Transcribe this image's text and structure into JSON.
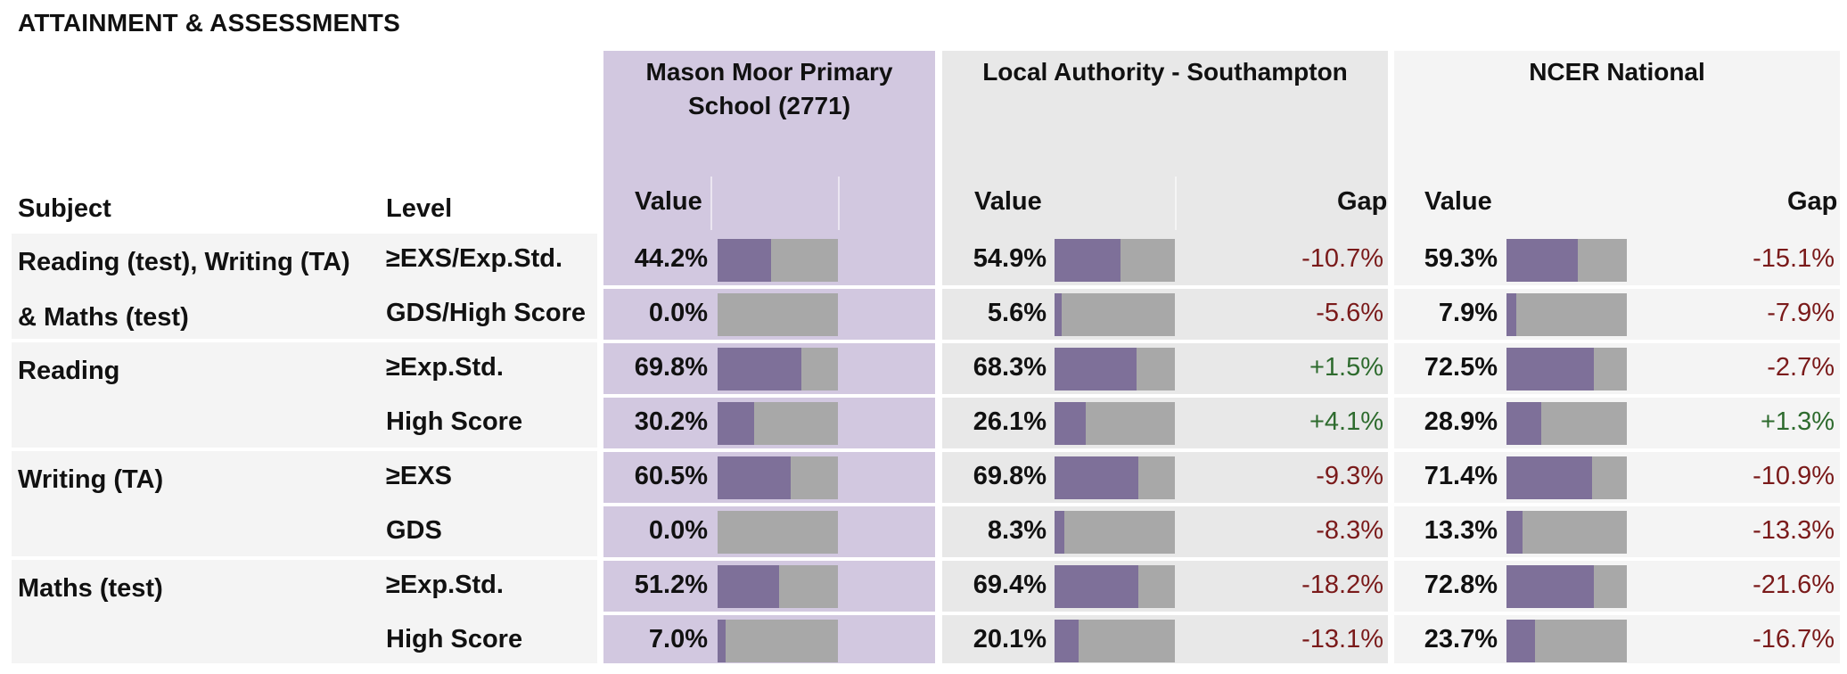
{
  "title": "ATTAINMENT & ASSESSMENTS",
  "groups": {
    "school": "Mason Moor Primary School (2771)",
    "la": "Local Authority - Southampton",
    "national": "NCER National"
  },
  "columns": {
    "subject": "Subject",
    "level": "Level",
    "value": "Value",
    "gap": "Gap"
  },
  "rows": [
    {
      "subject": "Reading (test), Writing (TA)",
      "level": "≥EXS/Exp.Std.",
      "school": "44.2%",
      "school_pct": 44.2,
      "la": "54.9%",
      "la_pct": 54.9,
      "la_gap": "-10.7%",
      "nat": "59.3%",
      "nat_pct": 59.3,
      "nat_gap": "-15.1%"
    },
    {
      "subject": "& Maths (test)",
      "level": "GDS/High Score",
      "school": "0.0%",
      "school_pct": 0.0,
      "la": "5.6%",
      "la_pct": 5.6,
      "la_gap": "-5.6%",
      "nat": "7.9%",
      "nat_pct": 7.9,
      "nat_gap": "-7.9%"
    },
    {
      "subject": "Reading",
      "level": "≥Exp.Std.",
      "school": "69.8%",
      "school_pct": 69.8,
      "la": "68.3%",
      "la_pct": 68.3,
      "la_gap": "+1.5%",
      "nat": "72.5%",
      "nat_pct": 72.5,
      "nat_gap": "-2.7%"
    },
    {
      "subject": "",
      "level": "High Score",
      "school": "30.2%",
      "school_pct": 30.2,
      "la": "26.1%",
      "la_pct": 26.1,
      "la_gap": "+4.1%",
      "nat": "28.9%",
      "nat_pct": 28.9,
      "nat_gap": "+1.3%"
    },
    {
      "subject": "Writing (TA)",
      "level": "≥EXS",
      "school": "60.5%",
      "school_pct": 60.5,
      "la": "69.8%",
      "la_pct": 69.8,
      "la_gap": "-9.3%",
      "nat": "71.4%",
      "nat_pct": 71.4,
      "nat_gap": "-10.9%"
    },
    {
      "subject": "",
      "level": "GDS",
      "school": "0.0%",
      "school_pct": 0.0,
      "la": "8.3%",
      "la_pct": 8.3,
      "la_gap": "-8.3%",
      "nat": "13.3%",
      "nat_pct": 13.3,
      "nat_gap": "-13.3%"
    },
    {
      "subject": "Maths (test)",
      "level": "≥Exp.Std.",
      "school": "51.2%",
      "school_pct": 51.2,
      "la": "69.4%",
      "la_pct": 69.4,
      "la_gap": "-18.2%",
      "nat": "72.8%",
      "nat_pct": 72.8,
      "nat_gap": "-21.6%"
    },
    {
      "subject": "",
      "level": "High Score",
      "school": "7.0%",
      "school_pct": 7.0,
      "la": "20.1%",
      "la_pct": 20.1,
      "la_gap": "-13.1%",
      "nat": "23.7%",
      "nat_pct": 23.7,
      "nat_gap": "-16.7%"
    }
  ],
  "colors": {
    "school_bg": "#d2c8e0",
    "bar_fill": "#7e7099",
    "bar_track": "#a8a8a8",
    "gap_positive": "#2e6b2e",
    "gap_negative": "#7a1a1a"
  }
}
